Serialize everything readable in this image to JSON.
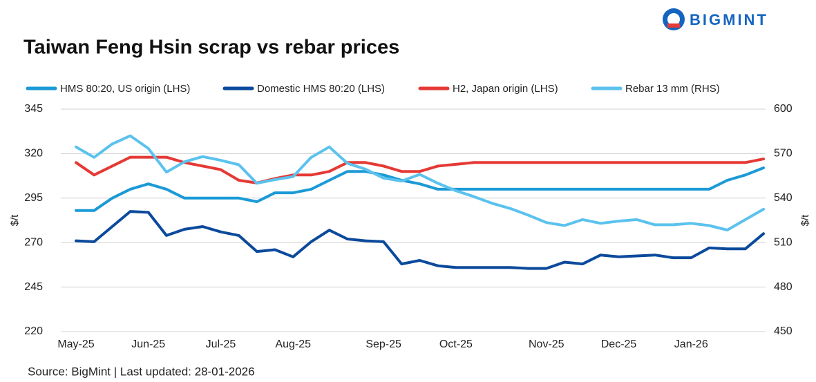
{
  "chart_data": {
    "type": "line",
    "title": "Taiwan Feng Hsin scrap vs rebar prices",
    "logo": "BIGMINT",
    "source": "Source: BigMint |  Last updated: 28-01-2026",
    "y_label": "$/t",
    "y2_label": "$/t",
    "categories": [
      "May-25",
      null,
      null,
      null,
      "Jun-25",
      null,
      null,
      null,
      "Jul-25",
      null,
      null,
      null,
      "Aug-25",
      null,
      null,
      null,
      null,
      "Sep-25",
      null,
      null,
      null,
      "Oct-25",
      null,
      null,
      null,
      null,
      "Nov-25",
      null,
      null,
      null,
      "Dec-25",
      null,
      null,
      null,
      "Jan-26",
      null,
      null,
      null,
      null
    ],
    "ylim": [
      220,
      345
    ],
    "yticks": [
      220,
      245,
      270,
      295,
      320,
      345
    ],
    "y2lim": [
      450,
      600
    ],
    "y2ticks": [
      450,
      480,
      510,
      540,
      570,
      600
    ],
    "grid": true,
    "legend": "top",
    "series": [
      {
        "name": "HMS 80:20, US origin (LHS)",
        "color": "#1b9ad6",
        "values": [
          288,
          288,
          295,
          300,
          303,
          300,
          295,
          295,
          295,
          295,
          293,
          298,
          298,
          300,
          305,
          310,
          310,
          308,
          305,
          303,
          300,
          300,
          300,
          300,
          300,
          300,
          300,
          300,
          300,
          300,
          300,
          300,
          300,
          300,
          300,
          300,
          305,
          308,
          312
        ]
      },
      {
        "name": "Domestic HMS 80:20 (LHS)",
        "color": "#0b4a9c",
        "values": [
          271,
          270.5,
          279,
          287.5,
          287,
          274,
          277.5,
          279,
          276,
          274,
          265,
          266,
          262,
          270.5,
          277,
          272,
          271,
          270.5,
          258,
          260,
          257,
          256,
          256,
          256,
          256,
          255.5,
          255.5,
          259,
          258,
          263,
          262,
          262.5,
          263,
          261.5,
          261.5,
          267,
          266.5,
          266.5,
          275
        ]
      },
      {
        "name": "H2, Japan origin (LHS)",
        "color": "#e53935",
        "values": [
          315,
          308,
          313,
          318,
          318,
          318,
          315,
          313,
          311,
          305,
          303.5,
          306,
          308,
          308,
          310,
          315,
          315,
          313,
          310,
          310,
          313,
          314,
          315,
          315,
          315,
          315,
          315,
          315,
          315,
          315,
          315,
          315,
          315,
          315,
          315,
          315,
          315,
          315,
          317
        ]
      },
      {
        "name": "Rebar 13 mm (RHS)",
        "color": "#5bc2ee",
        "axis": "y2",
        "values": [
          574.5,
          567.5,
          576.5,
          582,
          573.5,
          557.5,
          564.5,
          568,
          565.5,
          562.5,
          550,
          552.5,
          554.5,
          567.5,
          574.5,
          563.5,
          559.5,
          553.5,
          551.5,
          556,
          550,
          545,
          541,
          536.5,
          533,
          528.5,
          523.5,
          521.5,
          525.5,
          523,
          524.5,
          525.5,
          522,
          522,
          523,
          521.5,
          518.5,
          525.5,
          532.5
        ]
      }
    ]
  }
}
